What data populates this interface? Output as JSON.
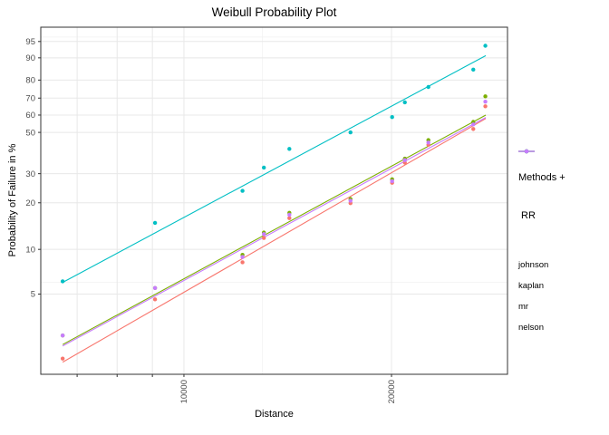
{
  "title": "Weibull Probability Plot",
  "axes": {
    "x": {
      "label": "Distance",
      "scale": "log10",
      "domain": [
        6200,
        29460
      ],
      "ticks": [
        {
          "value": 7000,
          "label": ""
        },
        {
          "value": 8000,
          "label": ""
        },
        {
          "value": 9000,
          "label": ""
        },
        {
          "value": 10000,
          "label": "10000"
        },
        {
          "value": 20000,
          "label": "20000"
        }
      ],
      "minor_gridlines": [
        13000
      ]
    },
    "y": {
      "label": "Probability of Failure in %",
      "scale": "weibull-probability",
      "domain_percent": [
        1.4,
        97.7
      ],
      "ticks": [
        {
          "value": 95,
          "label": "95"
        },
        {
          "value": 90,
          "label": "90"
        },
        {
          "value": 80,
          "label": "80"
        },
        {
          "value": 70,
          "label": "70"
        },
        {
          "value": 60,
          "label": "60"
        },
        {
          "value": 50,
          "label": "50"
        },
        {
          "value": 30,
          "label": "30"
        },
        {
          "value": 20,
          "label": "20"
        },
        {
          "value": 10,
          "label": "10"
        },
        {
          "value": 5,
          "label": "5"
        }
      ],
      "minor_gridlines": [
        96,
        6
      ]
    }
  },
  "legend": {
    "title_lines": [
      "Methods +",
      " RR"
    ]
  },
  "style": {
    "grid_major_color": "#e8e8e8",
    "grid_minor_color": "#f2f2f2",
    "panel_border_color": "#333333",
    "tick_color": "#333333",
    "tick_label_color": "#4d4d4d",
    "point_radius": 2.2
  },
  "chart_data": {
    "type": "scatter",
    "title": "Weibull Probability Plot",
    "xlabel": "Distance",
    "ylabel": "Probability of Failure in %",
    "x_values": [
      6670,
      9080,
      12160,
      13060,
      14220,
      17440,
      20040,
      20910,
      22620,
      26280,
      27360
    ],
    "series": [
      {
        "name": "johnson",
        "color": "#F8766D",
        "values": [
          1.8,
          4.6,
          8.2,
          11.9,
          16.0,
          19.9,
          26.5,
          34.7,
          43.3,
          51.9,
          65.2
        ],
        "fit_line": {
          "x": [
            6670,
            27400
          ],
          "y": [
            1.7,
            58.0
          ]
        }
      },
      {
        "name": "kaplan",
        "color": "#7CAE00",
        "values": [
          2.6,
          5.5,
          9.2,
          12.9,
          17.3,
          21.1,
          27.8,
          36.5,
          45.8,
          56.0,
          71.0
        ],
        "fit_line": {
          "x": [
            6670,
            27400
          ],
          "y": [
            2.25,
            60.0
          ]
        }
      },
      {
        "name": "mr",
        "color": "#00BFC4",
        "values": [
          6.1,
          14.9,
          23.7,
          32.5,
          41.2,
          50.0,
          58.8,
          67.5,
          76.3,
          85.1,
          93.9
        ],
        "fit_line": {
          "x": [
            6670,
            27400
          ],
          "y": [
            6.0,
            90.8
          ]
        }
      },
      {
        "name": "nelson",
        "color": "#C77CFF",
        "values": [
          2.6,
          5.5,
          8.9,
          12.6,
          16.8,
          20.6,
          27.1,
          35.8,
          44.5,
          54.5,
          67.9
        ],
        "fit_line": {
          "x": [
            6670,
            27400
          ],
          "y": [
            2.2,
            58.6
          ]
        }
      }
    ]
  }
}
